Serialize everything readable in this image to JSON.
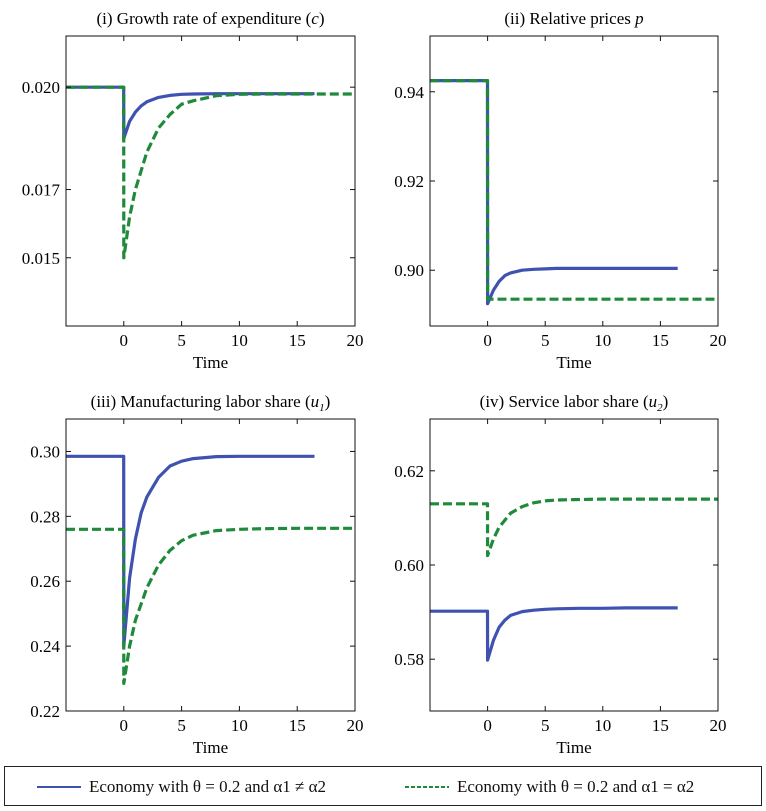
{
  "chart_data": [
    {
      "type": "line",
      "title": "(i) Growth rate of expenditure (c)",
      "xlabel": "Time",
      "ylabel": "",
      "xlim": [
        -5,
        20
      ],
      "ylim": [
        0.013,
        0.0215
      ],
      "xticks": [
        0,
        5,
        10,
        15,
        20
      ],
      "yticks": [
        0.015,
        0.017,
        0.02
      ],
      "ytick_labels": [
        "0.015",
        "0.017",
        "0.020"
      ],
      "series": [
        {
          "name": "Economy with θ = 0.2 and α1 ≠ α2",
          "color": "#3f52b0",
          "style": "solid",
          "x": [
            -5,
            -0.01,
            0,
            0.5,
            1,
            1.5,
            2,
            3,
            4,
            5,
            6,
            8,
            10,
            12,
            14,
            16.5
          ],
          "y": [
            0.02,
            0.02,
            0.0185,
            0.019,
            0.01927,
            0.01945,
            0.01957,
            0.0197,
            0.01976,
            0.01979,
            0.0198,
            0.01981,
            0.01981,
            0.01981,
            0.01981,
            0.01981
          ]
        },
        {
          "name": "Economy with θ = 0.2 and α1 = α2",
          "color": "#1f8a3a",
          "style": "dashed",
          "x": [
            -5,
            -0.01,
            0,
            0.5,
            1,
            2,
            3,
            4,
            5,
            6,
            8,
            10,
            12,
            15,
            20
          ],
          "y": [
            0.02,
            0.02,
            0.015,
            0.0162,
            0.017,
            0.0181,
            0.0188,
            0.0192,
            0.0195,
            0.0196,
            0.01975,
            0.01979,
            0.0198,
            0.0198,
            0.0198
          ]
        }
      ]
    },
    {
      "type": "line",
      "title": "(ii) Relative prices p",
      "xlabel": "Time",
      "ylabel": "",
      "xlim": [
        -5,
        20
      ],
      "ylim": [
        0.8875,
        0.9525
      ],
      "xticks": [
        0,
        5,
        10,
        15,
        20
      ],
      "yticks": [
        0.9,
        0.92,
        0.94
      ],
      "ytick_labels": [
        "0.90",
        "0.92",
        "0.94"
      ],
      "series": [
        {
          "name": "Economy with θ = 0.2 and α1 ≠ α2",
          "color": "#3f52b0",
          "style": "solid",
          "x": [
            -5,
            -0.01,
            0,
            0.5,
            1,
            1.5,
            2,
            3,
            4,
            5,
            6,
            8,
            10,
            12,
            16.5
          ],
          "y": [
            0.9425,
            0.9425,
            0.8925,
            0.8955,
            0.8975,
            0.8988,
            0.8994,
            0.9,
            0.9002,
            0.9003,
            0.9004,
            0.9004,
            0.9004,
            0.9004,
            0.9004
          ]
        },
        {
          "name": "Economy with θ = 0.2 and α1 = α2",
          "color": "#1f8a3a",
          "style": "dashed",
          "x": [
            -5,
            -0.01,
            0,
            0.3,
            20
          ],
          "y": [
            0.9425,
            0.9425,
            0.8935,
            0.8935,
            0.8935
          ]
        }
      ]
    },
    {
      "type": "line",
      "title": "(iii) Manufacturing labor share (u1)",
      "xlabel": "Time",
      "ylabel": "",
      "xlim": [
        -5,
        20
      ],
      "ylim": [
        0.22,
        0.31
      ],
      "xticks": [
        0,
        5,
        10,
        15,
        20
      ],
      "yticks": [
        0.22,
        0.24,
        0.26,
        0.28,
        0.3
      ],
      "ytick_labels": [
        "0.22",
        "0.24",
        "0.26",
        "0.28",
        "0.30"
      ],
      "series": [
        {
          "name": "Economy with θ = 0.2 and α1 ≠ α2",
          "color": "#3f52b0",
          "style": "solid",
          "x": [
            -5,
            -0.01,
            0,
            0.5,
            1,
            1.5,
            2,
            3,
            4,
            5,
            6,
            8,
            10,
            12,
            16.5
          ],
          "y": [
            0.2985,
            0.2985,
            0.24,
            0.261,
            0.273,
            0.281,
            0.286,
            0.292,
            0.2955,
            0.297,
            0.2978,
            0.2984,
            0.2985,
            0.2985,
            0.2985
          ]
        },
        {
          "name": "Economy with θ = 0.2 and α1 = α2",
          "color": "#1f8a3a",
          "style": "dashed",
          "x": [
            -5,
            -0.01,
            0,
            0.5,
            1,
            2,
            3,
            4,
            5,
            6,
            8,
            10,
            12,
            15,
            20
          ],
          "y": [
            0.276,
            0.276,
            0.2285,
            0.24,
            0.248,
            0.258,
            0.265,
            0.2695,
            0.2725,
            0.2742,
            0.2756,
            0.276,
            0.2762,
            0.2763,
            0.2763
          ]
        }
      ]
    },
    {
      "type": "line",
      "title": "(iv) Service labor share (u2)",
      "xlabel": "Time",
      "ylabel": "",
      "xlim": [
        -5,
        20
      ],
      "ylim": [
        0.569,
        0.631
      ],
      "xticks": [
        0,
        5,
        10,
        15,
        20
      ],
      "yticks": [
        0.58,
        0.6,
        0.62
      ],
      "ytick_labels": [
        "0.58",
        "0.60",
        "0.62"
      ],
      "series": [
        {
          "name": "Economy with θ = 0.2 and α1 ≠ α2",
          "color": "#3f52b0",
          "style": "solid",
          "x": [
            -5,
            -0.01,
            0,
            0.5,
            1,
            1.5,
            2,
            3,
            4,
            5,
            6,
            8,
            10,
            12,
            16.5
          ],
          "y": [
            0.5902,
            0.5902,
            0.5798,
            0.584,
            0.5868,
            0.5883,
            0.5893,
            0.5901,
            0.5904,
            0.5906,
            0.5907,
            0.5908,
            0.5908,
            0.5909,
            0.5909
          ]
        },
        {
          "name": "Economy with θ = 0.2 and α1 = α2",
          "color": "#1f8a3a",
          "style": "dashed",
          "x": [
            -5,
            -0.01,
            0,
            0.5,
            1,
            2,
            3,
            4,
            5,
            6,
            8,
            10,
            12,
            15,
            20
          ],
          "y": [
            0.613,
            0.613,
            0.602,
            0.6055,
            0.608,
            0.611,
            0.6124,
            0.6132,
            0.6136,
            0.6138,
            0.6139,
            0.614,
            0.614,
            0.614,
            0.614
          ]
        }
      ]
    }
  ],
  "legend": {
    "items": [
      {
        "label": "Economy with θ = 0.2 and α1 ≠ α2",
        "color": "#3f52b0",
        "style": "solid"
      },
      {
        "label": "Economy with θ = 0.2 and α1 = α2",
        "color": "#1f8a3a",
        "style": "dashed"
      }
    ]
  }
}
